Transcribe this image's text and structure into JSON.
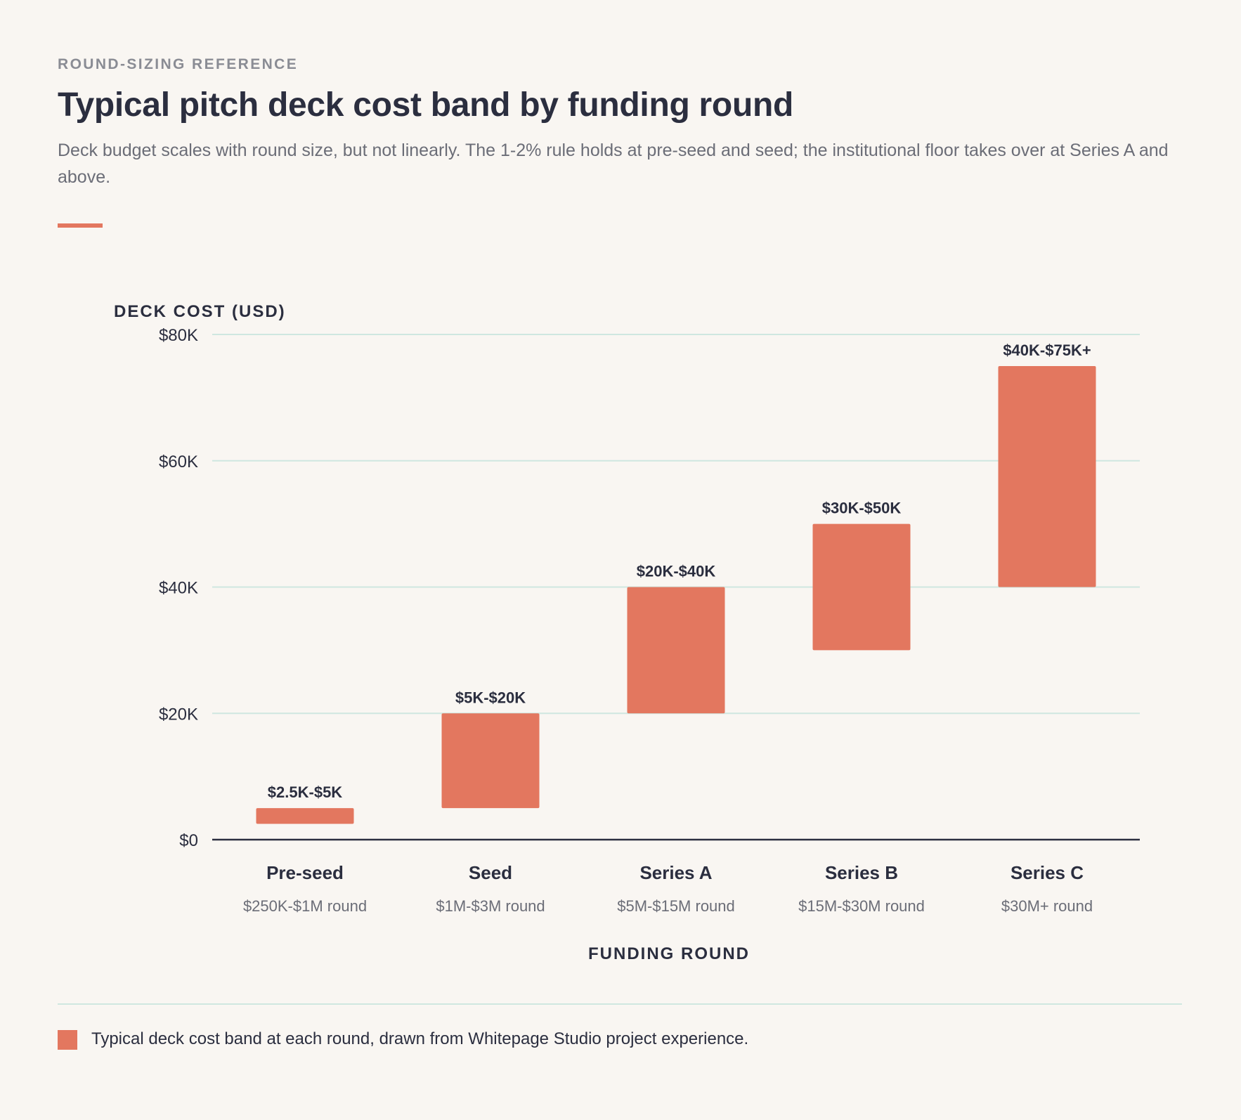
{
  "header": {
    "eyebrow": "ROUND-SIZING REFERENCE",
    "title": "Typical pitch deck cost band by funding round",
    "subtitle": "Deck budget scales with round size, but not linearly. The 1-2% rule holds at pre-seed and seed; the institutional floor takes over at Series A and above."
  },
  "colors": {
    "bar": "#e3775f",
    "grid": "#cfe7e0",
    "axis": "#2b2e3f",
    "text": "#2b2e3f",
    "muted": "#6b6d77"
  },
  "chart_data": {
    "type": "bar",
    "subtype": "floating-range",
    "ylabel": "DECK COST (USD)",
    "xlabel": "FUNDING ROUND",
    "ylim": [
      0,
      80000
    ],
    "yticks": [
      0,
      20000,
      40000,
      60000,
      80000
    ],
    "ytick_labels": [
      "$0",
      "$20K",
      "$40K",
      "$60K",
      "$80K"
    ],
    "grid": true,
    "categories": [
      "Pre-seed",
      "Seed",
      "Series A",
      "Series B",
      "Series C"
    ],
    "category_sublabels": [
      "$250K-$1M round",
      "$1M-$3M round",
      "$5M-$15M round",
      "$15M-$30M round",
      "$30M+ round"
    ],
    "series": [
      {
        "low": [
          2500,
          5000,
          20000,
          30000,
          40000
        ],
        "high": [
          5000,
          20000,
          40000,
          50000,
          75000
        ],
        "labels": [
          "$2.5K-$5K",
          "$5K-$20K",
          "$20K-$40K",
          "$30K-$50K",
          "$40K-$75K+"
        ]
      }
    ]
  },
  "legend": {
    "text": "Typical deck cost band at each round, drawn from Whitepage Studio project experience.",
    "placement": "bottom-left"
  }
}
